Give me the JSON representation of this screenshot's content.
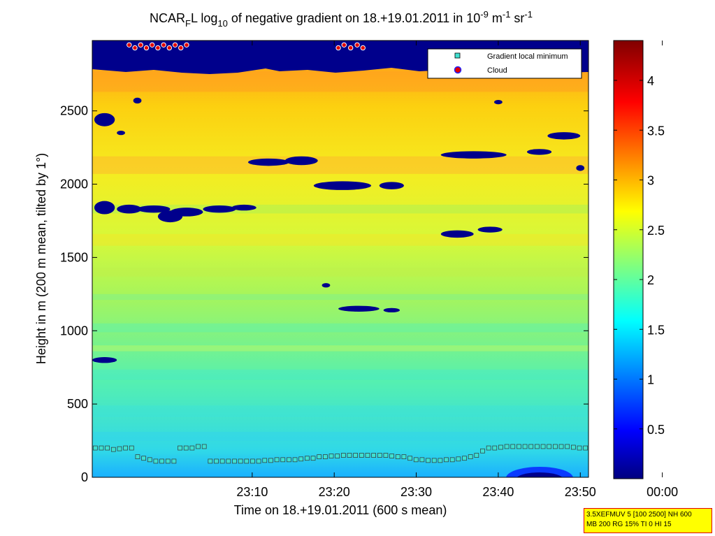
{
  "chart_data": {
    "type": "heatmap",
    "title": "NCAR_F L log_10 of negative gradient on 18.+19.01.2011 in 10^-9 m^-1 sr^-1",
    "title_parts": {
      "a": "NCAR",
      "sub1": "F",
      "b": "L log",
      "sub2": "10",
      "c": " of negative gradient on 18.+19.01.2011 in 10",
      "sup1": "-9",
      "d": " m",
      "sup2": "-1",
      "e": " sr",
      "sup3": "-1"
    },
    "xlabel": "Time on 18.+19.01.2011 (600 s mean)",
    "ylabel": "Height in m (200 m mean, tilted by 1°)",
    "x_ticks": [
      "23:10",
      "23:20",
      "23:30",
      "23:40",
      "23:50",
      "00:00"
    ],
    "x_range_minutes_after_23_00": [
      -9.5,
      51
    ],
    "y_ticks": [
      0,
      500,
      1000,
      1500,
      2000,
      2500
    ],
    "ylim": [
      0,
      2980
    ],
    "colorbar": {
      "ticks": [
        0.5,
        1,
        1.5,
        2,
        2.5,
        3,
        3.5,
        4
      ],
      "range": [
        0,
        4.4
      ],
      "colormap": "jet"
    },
    "legend": {
      "placement": "top-right",
      "entries": [
        {
          "label": "Gradient local minimum",
          "marker": "square",
          "color": "#40e0d0"
        },
        {
          "label": "Cloud",
          "marker": "circle",
          "color": "#e00000"
        }
      ]
    },
    "gradient_local_minimum_heights_m": [
      200,
      200,
      200,
      190,
      195,
      200,
      200,
      140,
      130,
      120,
      110,
      110,
      110,
      110,
      200,
      200,
      200,
      210,
      210,
      110,
      110,
      110,
      110,
      110,
      110,
      110,
      110,
      110,
      115,
      115,
      120,
      120,
      120,
      120,
      125,
      130,
      130,
      140,
      140,
      145,
      145,
      150,
      150,
      150,
      150,
      150,
      150,
      150,
      150,
      145,
      140,
      140,
      130,
      120,
      120,
      115,
      115,
      115,
      120,
      120,
      125,
      130,
      140,
      150,
      180,
      200,
      200,
      205,
      210,
      210,
      210,
      210,
      210,
      210,
      210,
      210,
      210,
      210,
      210,
      205,
      200,
      200
    ],
    "cloud_top_height_m": 2940
  },
  "info_box": {
    "line1": "3.5XEFMUV 5 [100 2500] NH 600",
    "line2": "MB 200 RG 15% TI 0 HI 15"
  }
}
